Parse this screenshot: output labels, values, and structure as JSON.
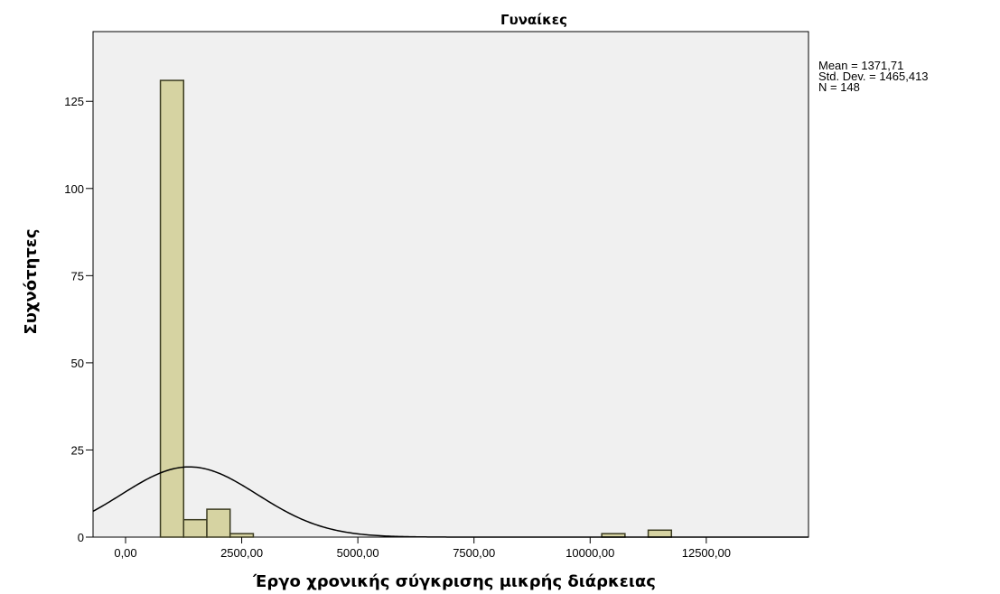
{
  "chart_data": {
    "type": "bar",
    "subtype": "histogram",
    "title": "Γυναίκες",
    "xlabel": "Έργο χρονικής σύγκρισης μικρής διάρκειας",
    "ylabel": "Συχνότητες",
    "xlim": [
      -700,
      14700
    ],
    "ylim": [
      0,
      145
    ],
    "x_ticks": [
      0,
      2500,
      5000,
      7500,
      10000,
      12500
    ],
    "x_tick_labels": [
      "0,00",
      "2500,00",
      "5000,00",
      "7500,00",
      "10000,00",
      "12500,00"
    ],
    "y_ticks": [
      0,
      25,
      50,
      75,
      100,
      125
    ],
    "y_tick_labels": [
      "0",
      "25",
      "50",
      "75",
      "100",
      "125"
    ],
    "bin_width": 500,
    "bins": [
      {
        "start": 750,
        "end": 1250,
        "count": 131
      },
      {
        "start": 1250,
        "end": 1750,
        "count": 5
      },
      {
        "start": 1750,
        "end": 2250,
        "count": 8
      },
      {
        "start": 2250,
        "end": 2750,
        "count": 1
      },
      {
        "start": 10250,
        "end": 10750,
        "count": 1
      },
      {
        "start": 11250,
        "end": 11750,
        "count": 2
      }
    ],
    "normal_curve": {
      "mean": 1371.71,
      "std": 1465.413,
      "n": 148
    },
    "stats_text": [
      "Mean = 1371,71",
      "Std. Dev. = 1465,413",
      "N = 148"
    ],
    "grid": false,
    "legend": "none",
    "colors": {
      "bar_fill": "#d6d3a2",
      "bar_stroke": "#3a3a20",
      "plot_bg": "#f0f0f0",
      "curve": "#000000"
    }
  }
}
